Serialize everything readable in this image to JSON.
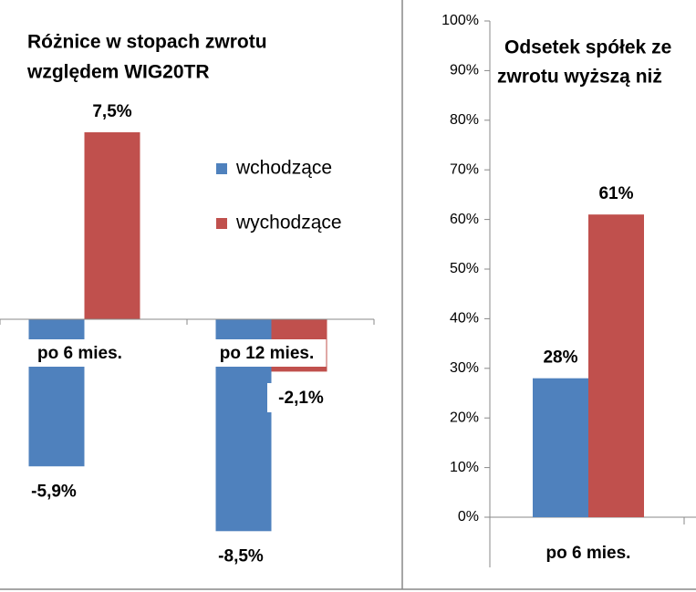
{
  "chart_data": [
    {
      "type": "bar",
      "title": [
        "Różnice w stopach zwrotu",
        "względem WIG20TR"
      ],
      "categories": [
        "po 6 mies.",
        "po 12 mies."
      ],
      "series": [
        {
          "name": "wchodzące",
          "color": "#4f81bd",
          "values": [
            -5.9,
            -8.5
          ],
          "value_labels": [
            "-5,9%",
            "-8,5%"
          ]
        },
        {
          "name": "wychodzące",
          "color": "#c0504d",
          "values": [
            7.5,
            -2.1
          ],
          "value_labels": [
            "7,5%",
            "-2,1%"
          ]
        }
      ],
      "ylim": [
        -10,
        10
      ]
    },
    {
      "type": "bar",
      "title": [
        "Odsetek spółek ze",
        "zwrotu wyższą niż"
      ],
      "categories": [
        "po 6 mies."
      ],
      "series": [
        {
          "color": "#4f81bd",
          "values": [
            28
          ],
          "value_labels": [
            "28%"
          ]
        },
        {
          "color": "#c0504d",
          "values": [
            61
          ],
          "value_labels": [
            "61%"
          ]
        }
      ],
      "ylim": [
        0,
        100
      ],
      "yticks": [
        {
          "value": 0,
          "label": "0%"
        },
        {
          "value": 10,
          "label": "10%"
        },
        {
          "value": 20,
          "label": "20%"
        },
        {
          "value": 30,
          "label": "30%"
        },
        {
          "value": 40,
          "label": "40%"
        },
        {
          "value": 50,
          "label": "50%"
        },
        {
          "value": 60,
          "label": "60%"
        },
        {
          "value": 70,
          "label": "70%"
        },
        {
          "value": 80,
          "label": "80%"
        },
        {
          "value": 90,
          "label": "90%"
        },
        {
          "value": 100,
          "label": "100%"
        }
      ]
    }
  ]
}
